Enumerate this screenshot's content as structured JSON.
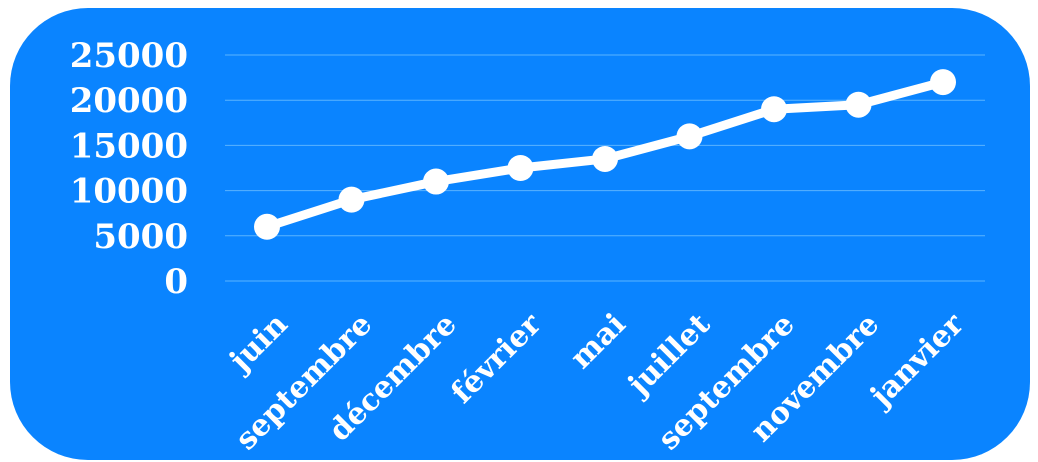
{
  "chart_data": {
    "type": "line",
    "title": "",
    "xlabel": "",
    "ylabel": "",
    "categories": [
      "juin",
      "septembre",
      "décembre",
      "février",
      "mai",
      "juillet",
      "septembre",
      "novembre",
      "janvier"
    ],
    "series": [
      {
        "values": [
          6000,
          9000,
          11000,
          12500,
          13500,
          16000,
          19000,
          19500,
          22000
        ]
      }
    ],
    "ylim": [
      0,
      25000
    ],
    "yticks": [
      "0",
      "5000",
      "10000",
      "15000",
      "20000",
      "25000"
    ],
    "grid": true,
    "legend": "none",
    "colors": {
      "background": "#0a84ff",
      "line": "#ffffff",
      "grid": "#5bb3ff",
      "text": "#ffffff"
    }
  }
}
